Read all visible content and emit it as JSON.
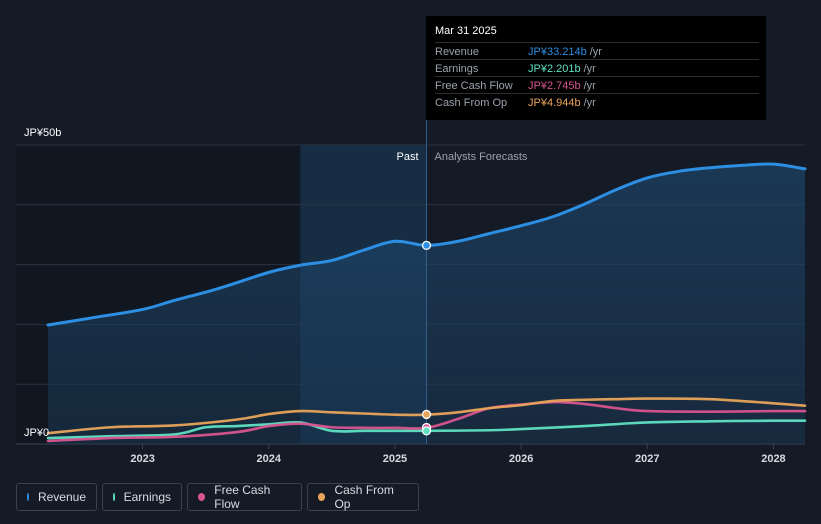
{
  "chart_data": {
    "type": "area",
    "x_range": [
      2022.25,
      2028.25
    ],
    "y_range": [
      0,
      50
    ],
    "y_tick_labels": [
      "JP¥0",
      "JP¥50b"
    ],
    "x_ticks": [
      2023,
      2024,
      2025,
      2026,
      2027,
      2028
    ],
    "x_tick_labels": [
      "2023",
      "2024",
      "2025",
      "2026",
      "2027",
      "2028"
    ],
    "past_label": "Past",
    "forecast_label": "Analysts Forecasts",
    "divider_x": 2025.25,
    "highlight_start": 2024.25,
    "series": [
      {
        "key": "revenue",
        "name": "Revenue",
        "color": "#2d8fe4",
        "points": [
          [
            2022.25,
            19.9
          ],
          [
            2022.6,
            21.1
          ],
          [
            2023.0,
            22.5
          ],
          [
            2023.25,
            24.0
          ],
          [
            2023.6,
            26.0
          ],
          [
            2024.0,
            28.7
          ],
          [
            2024.25,
            29.9
          ],
          [
            2024.5,
            30.7
          ],
          [
            2024.75,
            32.4
          ],
          [
            2025.0,
            33.9
          ],
          [
            2025.25,
            33.2
          ],
          [
            2025.5,
            33.9
          ],
          [
            2025.75,
            35.2
          ],
          [
            2026.0,
            36.5
          ],
          [
            2026.25,
            38.0
          ],
          [
            2026.5,
            40.1
          ],
          [
            2026.75,
            42.5
          ],
          [
            2027.0,
            44.5
          ],
          [
            2027.25,
            45.6
          ],
          [
            2027.5,
            46.2
          ],
          [
            2027.75,
            46.6
          ],
          [
            2028.0,
            46.8
          ],
          [
            2028.25,
            46.0
          ]
        ]
      },
      {
        "key": "earnings",
        "name": "Earnings",
        "color": "#5fe0c2",
        "points": [
          [
            2022.25,
            1.0
          ],
          [
            2022.75,
            1.3
          ],
          [
            2023.25,
            1.6
          ],
          [
            2023.5,
            2.8
          ],
          [
            2023.75,
            3.0
          ],
          [
            2024.0,
            3.3
          ],
          [
            2024.25,
            3.6
          ],
          [
            2024.5,
            2.2
          ],
          [
            2024.75,
            2.2
          ],
          [
            2025.0,
            2.2
          ],
          [
            2025.25,
            2.2
          ],
          [
            2025.75,
            2.3
          ],
          [
            2026.0,
            2.5
          ],
          [
            2026.5,
            3.0
          ],
          [
            2027.0,
            3.6
          ],
          [
            2027.5,
            3.8
          ],
          [
            2028.0,
            3.9
          ],
          [
            2028.25,
            3.9
          ]
        ]
      },
      {
        "key": "fcf",
        "name": "Free Cash Flow",
        "color": "#d9548f",
        "points": [
          [
            2022.25,
            0.5
          ],
          [
            2022.75,
            1.0
          ],
          [
            2023.25,
            1.2
          ],
          [
            2023.75,
            2.0
          ],
          [
            2024.0,
            3.0
          ],
          [
            2024.25,
            3.4
          ],
          [
            2024.5,
            2.8
          ],
          [
            2024.75,
            2.7
          ],
          [
            2025.0,
            2.7
          ],
          [
            2025.25,
            2.7
          ],
          [
            2025.5,
            4.2
          ],
          [
            2025.75,
            6.0
          ],
          [
            2026.0,
            6.6
          ],
          [
            2026.25,
            7.0
          ],
          [
            2026.5,
            6.7
          ],
          [
            2026.75,
            6.0
          ],
          [
            2027.0,
            5.5
          ],
          [
            2027.5,
            5.4
          ],
          [
            2028.0,
            5.5
          ],
          [
            2028.25,
            5.5
          ]
        ]
      },
      {
        "key": "cfo",
        "name": "Cash From Op",
        "color": "#e8a45a",
        "points": [
          [
            2022.25,
            1.8
          ],
          [
            2022.75,
            2.8
          ],
          [
            2023.25,
            3.1
          ],
          [
            2023.75,
            4.1
          ],
          [
            2024.0,
            5.0
          ],
          [
            2024.25,
            5.5
          ],
          [
            2024.5,
            5.3
          ],
          [
            2024.75,
            5.1
          ],
          [
            2025.0,
            4.9
          ],
          [
            2025.25,
            4.9
          ],
          [
            2025.5,
            5.3
          ],
          [
            2025.75,
            6.0
          ],
          [
            2026.0,
            6.5
          ],
          [
            2026.25,
            7.2
          ],
          [
            2026.5,
            7.4
          ],
          [
            2026.75,
            7.5
          ],
          [
            2027.0,
            7.6
          ],
          [
            2027.5,
            7.5
          ],
          [
            2028.0,
            6.8
          ],
          [
            2028.25,
            6.4
          ]
        ]
      }
    ],
    "markers": [
      {
        "series": "revenue",
        "x": 2025.25,
        "y": 33.214
      },
      {
        "series": "cfo",
        "x": 2025.25,
        "y": 4.944
      },
      {
        "series": "fcf",
        "x": 2025.25,
        "y": 2.745
      },
      {
        "series": "earnings",
        "x": 2025.25,
        "y": 2.201
      }
    ]
  },
  "tooltip": {
    "date": "Mar 31 2025",
    "rows": [
      {
        "label": "Revenue",
        "value": "JP¥33.214b",
        "unit": "/yr",
        "color": "#2d8fe4"
      },
      {
        "label": "Earnings",
        "value": "JP¥2.201b",
        "unit": "/yr",
        "color": "#5fe0c2"
      },
      {
        "label": "Free Cash Flow",
        "value": "JP¥2.745b",
        "unit": "/yr",
        "color": "#d9548f"
      },
      {
        "label": "Cash From Op",
        "value": "JP¥4.944b",
        "unit": "/yr",
        "color": "#e8a45a"
      }
    ]
  },
  "legend": [
    {
      "label": "Revenue",
      "color": "#2d8fe4"
    },
    {
      "label": "Earnings",
      "color": "#5fe0c2"
    },
    {
      "label": "Free Cash Flow",
      "color": "#d9548f"
    },
    {
      "label": "Cash From Op",
      "color": "#e8a45a"
    }
  ]
}
